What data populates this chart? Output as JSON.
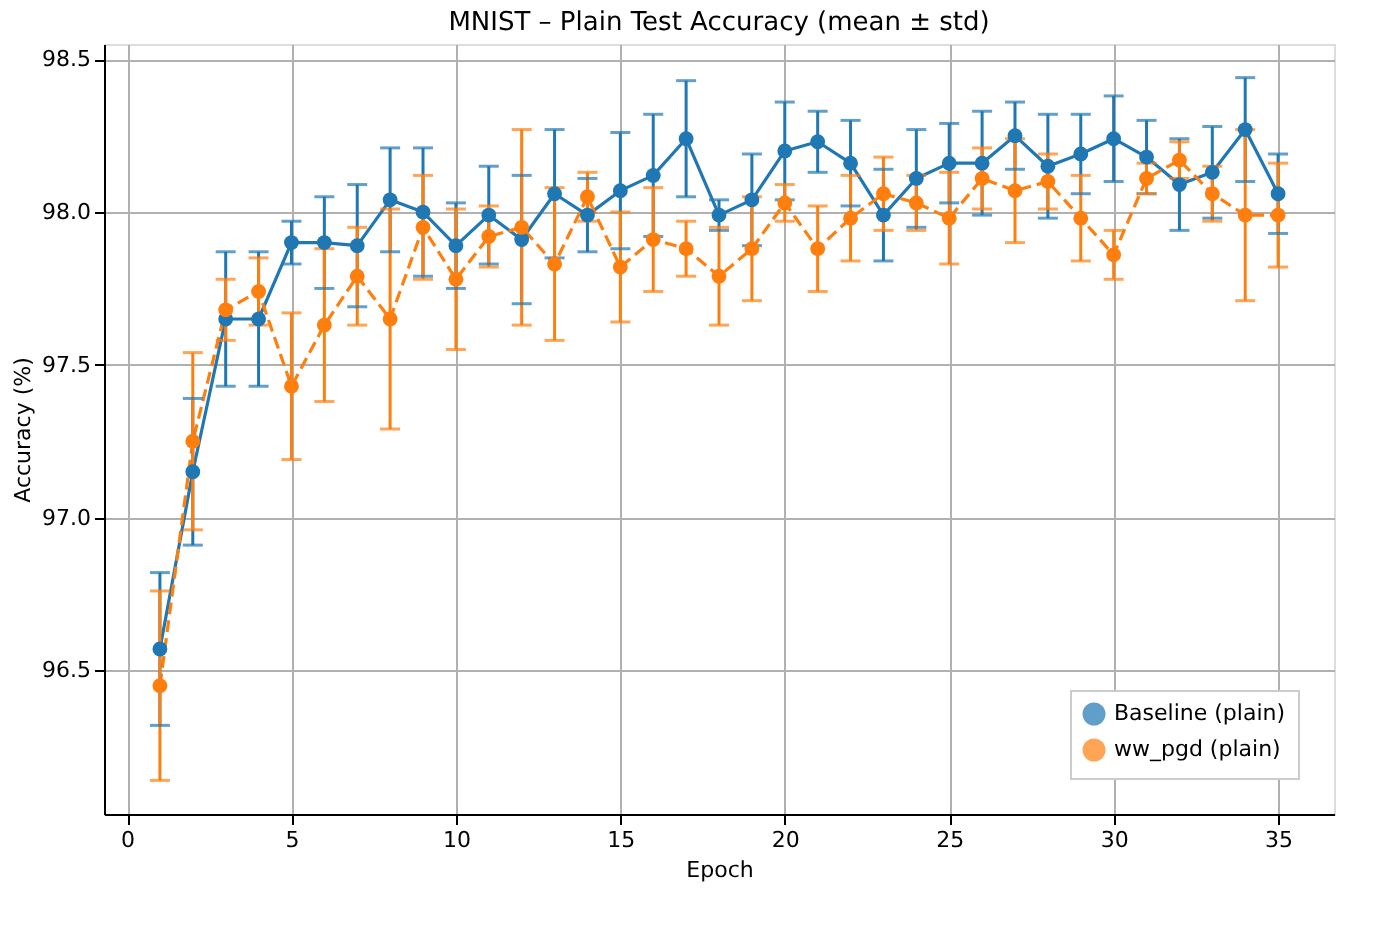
{
  "chart_data": {
    "type": "line",
    "title": "MNIST – Plain Test Accuracy (mean ± std)",
    "xlabel": "Epoch",
    "ylabel": "Accuracy (%)",
    "x": [
      1,
      2,
      3,
      4,
      5,
      6,
      7,
      8,
      9,
      10,
      11,
      12,
      13,
      14,
      15,
      16,
      17,
      18,
      19,
      20,
      21,
      22,
      23,
      24,
      25,
      26,
      27,
      28,
      29,
      30,
      31,
      32,
      33,
      34,
      35
    ],
    "series": [
      {
        "name": "Baseline (plain)",
        "color": "#1f77b4",
        "line_style": "solid",
        "values": [
          96.57,
          97.15,
          97.65,
          97.65,
          97.9,
          97.9,
          97.89,
          98.04,
          98.0,
          97.89,
          97.99,
          97.91,
          98.06,
          97.99,
          98.07,
          98.12,
          98.24,
          97.99,
          98.04,
          98.2,
          98.23,
          98.16,
          97.99,
          98.11,
          98.16,
          98.16,
          98.25,
          98.15,
          98.19,
          98.24,
          98.18,
          98.09,
          98.13,
          98.27,
          98.06
        ],
        "errors": [
          0.25,
          0.24,
          0.22,
          0.22,
          0.07,
          0.15,
          0.2,
          0.17,
          0.21,
          0.14,
          0.16,
          0.21,
          0.21,
          0.12,
          0.19,
          0.2,
          0.19,
          0.05,
          0.15,
          0.16,
          0.1,
          0.14,
          0.15,
          0.16,
          0.13,
          0.17,
          0.11,
          0.17,
          0.13,
          0.14,
          0.12,
          0.15,
          0.15,
          0.17,
          0.13
        ]
      },
      {
        "name": "ww_pgd (plain)",
        "color": "#ff7f0e",
        "line_style": "dashed",
        "values": [
          96.45,
          97.25,
          97.68,
          97.74,
          97.43,
          97.63,
          97.79,
          97.65,
          97.95,
          97.78,
          97.92,
          97.95,
          97.83,
          98.05,
          97.82,
          97.91,
          97.88,
          97.79,
          97.88,
          98.03,
          97.88,
          97.98,
          98.06,
          98.03,
          97.98,
          98.11,
          98.07,
          98.1,
          97.98,
          97.86,
          98.11,
          98.17,
          98.06,
          97.99,
          97.99
        ],
        "errors": [
          0.31,
          0.29,
          0.1,
          0.11,
          0.24,
          0.25,
          0.16,
          0.36,
          0.17,
          0.23,
          0.1,
          0.32,
          0.25,
          0.08,
          0.18,
          0.17,
          0.09,
          0.16,
          0.17,
          0.06,
          0.14,
          0.14,
          0.12,
          0.09,
          0.15,
          0.1,
          0.17,
          0.09,
          0.14,
          0.08,
          0.05,
          0.06,
          0.09,
          0.28,
          0.17
        ]
      }
    ],
    "xlim": [
      -0.7,
      36.7
    ],
    "ylim": [
      96.03,
      98.55
    ],
    "xticks": [
      0,
      5,
      10,
      15,
      20,
      25,
      30,
      35
    ],
    "yticks": [
      96.5,
      {
        "value": 97,
        "label": "97.0"
      },
      97.5,
      {
        "value": 98,
        "label": "98.0"
      },
      98.5
    ],
    "grid": true,
    "legend": "bottom right",
    "marker": "circle"
  }
}
